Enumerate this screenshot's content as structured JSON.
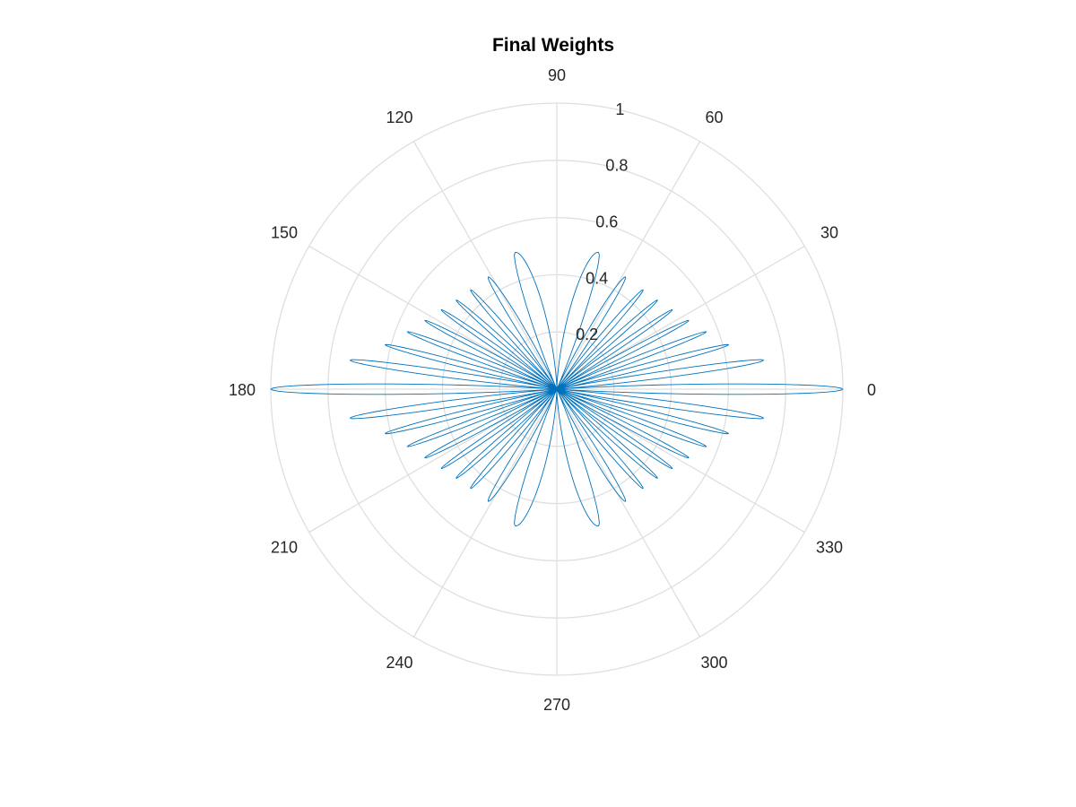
{
  "chart_data": {
    "type": "polar",
    "title": "Final Weights",
    "theta_unit": "degrees",
    "angle_ticks": [
      0,
      30,
      60,
      90,
      120,
      150,
      180,
      210,
      240,
      270,
      300,
      330
    ],
    "angle_tick_labels": [
      "0",
      "30",
      "60",
      "90",
      "120",
      "150",
      "180",
      "210",
      "240",
      "270",
      "300",
      "330"
    ],
    "r_ticks": [
      0.2,
      0.4,
      0.6,
      0.8,
      1
    ],
    "r_tick_labels": [
      "0.2",
      "0.4",
      "0.6",
      "0.8",
      "1"
    ],
    "rlim": [
      0,
      1
    ],
    "grid": true,
    "series": [
      {
        "color": "#0072BD",
        "description": "symmetric multi-lobe pattern; lobes listed for 0-90 degrees, mirrored about the 0-180 and 90-270 axes",
        "lobes": [
          {
            "peak_theta": 0,
            "peak_r": 1.0
          },
          {
            "peak_theta": 8,
            "peak_r": 0.73
          },
          {
            "peak_theta": 14.5,
            "peak_r": 0.62
          },
          {
            "peak_theta": 21,
            "peak_r": 0.56
          },
          {
            "peak_theta": 27.5,
            "peak_r": 0.52
          },
          {
            "peak_theta": 34.5,
            "peak_r": 0.49
          },
          {
            "peak_theta": 41.5,
            "peak_r": 0.47
          },
          {
            "peak_theta": 49,
            "peak_r": 0.46
          },
          {
            "peak_theta": 58.5,
            "peak_r": 0.46
          },
          {
            "peak_theta": 73,
            "peak_r": 0.5
          }
        ]
      }
    ]
  }
}
